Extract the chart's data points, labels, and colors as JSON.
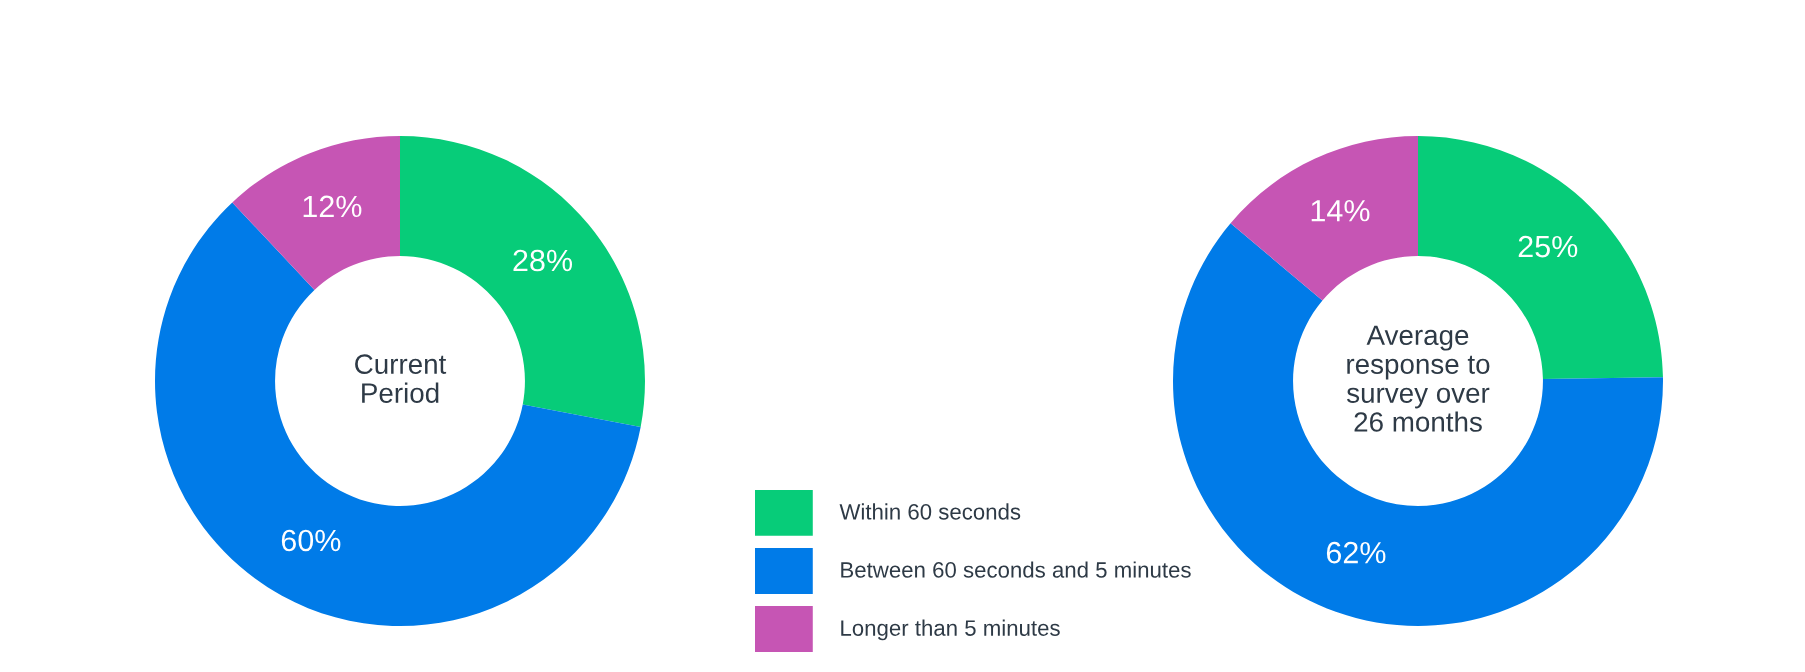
{
  "chart_data": [
    {
      "type": "donut",
      "title": "Current\nPeriod",
      "categories": [
        "Within 60 seconds",
        "Between 60 seconds and 5 minutes",
        "Longer than 5 minutes"
      ],
      "values": [
        28,
        60,
        12
      ],
      "value_labels": [
        "28%",
        "60%",
        "12%"
      ],
      "colors": [
        "#07cc79",
        "#007be8",
        "#c655b4"
      ],
      "legend": "bottom right"
    },
    {
      "type": "donut",
      "title": "Average\nresponse to\nsurvey over\n26 months",
      "categories": [
        null,
        null,
        null
      ],
      "values": [
        25,
        62,
        14
      ],
      "value_labels": [
        "25%",
        "62%",
        "14%"
      ],
      "colors": [
        "#07cc79",
        "#007be8",
        "#c655b4"
      ]
    }
  ]
}
